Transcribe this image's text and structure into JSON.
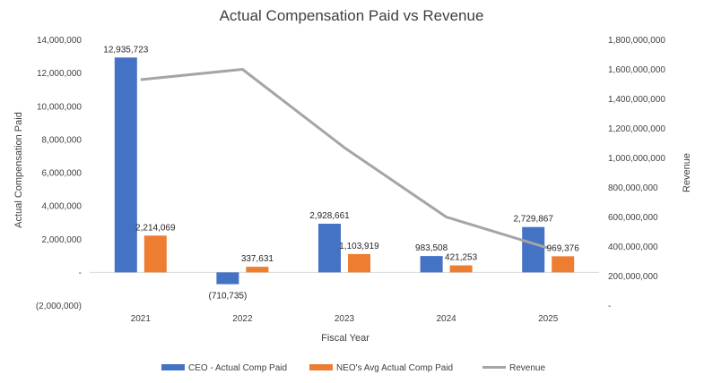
{
  "chart_data": {
    "type": "bar",
    "title": "Actual Compensation Paid vs Revenue",
    "xlabel": "Fiscal Year",
    "ylabel": "Actual Compensation Paid",
    "y2label": "Revenue",
    "categories": [
      "2021",
      "2022",
      "2023",
      "2024",
      "2025"
    ],
    "ylim": [
      -2000000,
      14000000
    ],
    "y2lim": [
      0,
      1800000000
    ],
    "y_ticks": [
      {
        "value": -2000000,
        "label": "(2,000,000)"
      },
      {
        "value": 0,
        "label": "-"
      },
      {
        "value": 2000000,
        "label": "2,000,000"
      },
      {
        "value": 4000000,
        "label": "4,000,000"
      },
      {
        "value": 6000000,
        "label": "6,000,000"
      },
      {
        "value": 8000000,
        "label": "8,000,000"
      },
      {
        "value": 10000000,
        "label": "10,000,000"
      },
      {
        "value": 12000000,
        "label": "12,000,000"
      },
      {
        "value": 14000000,
        "label": "14,000,000"
      }
    ],
    "y2_ticks": [
      {
        "value": 0,
        "label": "-"
      },
      {
        "value": 200000000,
        "label": "200,000,000"
      },
      {
        "value": 400000000,
        "label": "400,000,000"
      },
      {
        "value": 600000000,
        "label": "600,000,000"
      },
      {
        "value": 800000000,
        "label": "800,000,000"
      },
      {
        "value": 1000000000,
        "label": "1,000,000,000"
      },
      {
        "value": 1200000000,
        "label": "1,200,000,000"
      },
      {
        "value": 1400000000,
        "label": "1,400,000,000"
      },
      {
        "value": 1600000000,
        "label": "1,600,000,000"
      },
      {
        "value": 1800000000,
        "label": "1,800,000,000"
      }
    ],
    "series": [
      {
        "name": "CEO - Actual Comp Paid",
        "type": "bar",
        "axis": "left",
        "color": "#4472C4",
        "values": [
          12935723,
          -710735,
          2928661,
          983508,
          2729867
        ],
        "labels": [
          "12,935,723",
          "(710,735)",
          "2,928,661",
          "983,508",
          "2,729,867"
        ]
      },
      {
        "name": "NEO's Avg Actual Comp Paid",
        "type": "bar",
        "axis": "left",
        "color": "#ED7D31",
        "values": [
          2214069,
          337631,
          1103919,
          421253,
          969376
        ],
        "labels": [
          "2,214,069",
          "337,631",
          "1,103,919",
          "421,253",
          "969,376"
        ]
      },
      {
        "name": "Revenue",
        "type": "line",
        "axis": "right",
        "color": "#A5A5A5",
        "values": [
          1530000000,
          1600000000,
          1070000000,
          600000000,
          390000000
        ]
      }
    ],
    "grid": false,
    "legend_position": "bottom"
  }
}
